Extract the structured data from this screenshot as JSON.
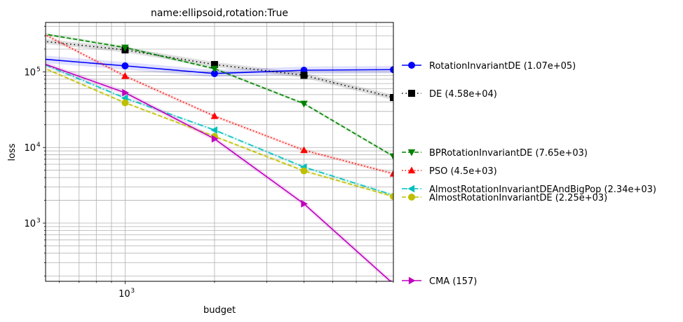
{
  "chart_data": {
    "type": "line",
    "title": "name:ellipsoid,rotation:True",
    "xlabel": "budget",
    "ylabel": "loss",
    "xscale": "log",
    "yscale": "log",
    "xlim": [
      540,
      8000
    ],
    "ylim": [
      170,
      450000
    ],
    "grid": true,
    "legend_position": "right-outside",
    "x_tick_labels": [
      {
        "base": "10",
        "exp": "3",
        "value": 1000
      }
    ],
    "y_tick_labels": [
      {
        "base": "10",
        "exp": "3",
        "value": 1000
      },
      {
        "base": "10",
        "exp": "4",
        "value": 10000
      },
      {
        "base": "10",
        "exp": "5",
        "value": 100000
      }
    ],
    "x": [
      500,
      1000,
      2000,
      4000,
      8000
    ],
    "series": [
      {
        "name": "RotationInvariantDE (1.07e+05)",
        "color": "#0000ff",
        "dash": "",
        "marker": "circle",
        "values": [
          150000,
          120000,
          95000,
          105000,
          107000
        ],
        "band": 0.12
      },
      {
        "name": "DE (4.58e+04)",
        "color": "#000000",
        "dash": "1.5,4",
        "marker": "square",
        "values": [
          260000,
          195000,
          125000,
          90000,
          45800
        ],
        "band": 0.08
      },
      {
        "name": "BPRotationInvariantDE (7.65e+03)",
        "color": "#008000",
        "dash": "6,3",
        "marker": "triangle-down",
        "values": [
          330000,
          210000,
          110000,
          38000,
          7650
        ],
        "band": 0.05
      },
      {
        "name": "PSO (4.5e+03)",
        "color": "#ff0000",
        "dash": "1.5,3",
        "marker": "triangle-up",
        "values": [
          360000,
          88000,
          26000,
          9200,
          4500
        ],
        "band": 0.05
      },
      {
        "name": "AlmostRotationInvariantDEAndBigPop (2.34e+03)",
        "color": "#00bfbf",
        "dash": "8,3,1.5,3",
        "marker": "triangle-left",
        "values": [
          140000,
          45000,
          17000,
          5500,
          2340
        ],
        "band": 0.05
      },
      {
        "name": "AlmostRotationInvariantDE (2.25e+03)",
        "color": "#bfbf00",
        "dash": "6,3",
        "marker": "circle",
        "values": [
          125000,
          39000,
          14000,
          4900,
          2250
        ],
        "band": 0.05
      },
      {
        "name": "CMA (157)",
        "color": "#bf00bf",
        "dash": "",
        "marker": "triangle-right",
        "values": [
          140000,
          53000,
          13000,
          1800,
          157
        ],
        "band": 0.08
      }
    ]
  }
}
